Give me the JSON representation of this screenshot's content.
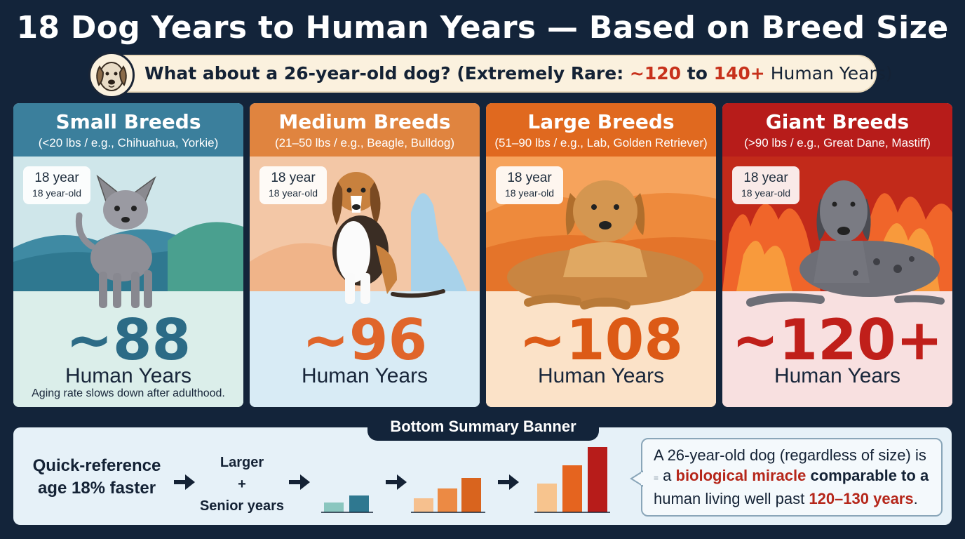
{
  "title": "18 Dog Years to Human Years — Based on Breed Size",
  "subtitle": {
    "lead": "What about a 26-year-old dog? (Extremely Rare: ",
    "low": "~120",
    "mid": " to ",
    "high": "140+",
    "tail": " Human Years)"
  },
  "cards": [
    {
      "name": "Small Breeds",
      "sub": "(<20 lbs / e.g., Chihuahua, Yorkie)",
      "badge_main": "18 year",
      "badge_sub": "18 year-old",
      "value": "~88",
      "unit": "Human Years",
      "note": "Aging rate slows down after adulthood.",
      "head_color": "#3b7f9c",
      "value_color": "#2c6b86"
    },
    {
      "name": "Medium Breeds",
      "sub": "(21–50 lbs / e.g., Beagle, Bulldog)",
      "badge_main": "18 year",
      "badge_sub": "18 year-old",
      "value": "~96",
      "unit": "Human Years",
      "head_color": "#e0843f",
      "value_color": "#e0652a"
    },
    {
      "name": "Large Breeds",
      "sub": "(51–90 lbs / e.g., Lab, Golden Retriever)",
      "badge_main": "18 year",
      "badge_sub": "18 year-old",
      "value": "~108",
      "unit": "Human Years",
      "head_color": "#e0691f",
      "value_color": "#dc5a16"
    },
    {
      "name": "Giant Breeds",
      "sub": "(>90 lbs / e.g., Great Dane, Mastiff)",
      "badge_main": "18 year",
      "badge_sub": "18 year-old",
      "value": "~120+",
      "unit": "Human Years",
      "head_color": "#b71c1a",
      "value_color": "#c01f1a"
    }
  ],
  "bottom": {
    "tab_label": "Bottom Summary Banner",
    "quick_ref": [
      "Quick-reference",
      "age 18% faster"
    ],
    "larger": [
      "Larger",
      "+",
      "Senior years"
    ],
    "callout": {
      "l1": "A 26-year-old dog (regardless of size) is",
      "dim": "≡",
      "a": "a ",
      "b": "biological miracle",
      "c": " comparable to a",
      "l3a": "human living well past ",
      "l3b": "120–130 years",
      "l3c": "."
    }
  },
  "icons": {
    "avatar": "dog-face-icon",
    "arrow": "arrow-right-icon"
  },
  "colors": {
    "background": "#13243a",
    "accent_red": "#c7311b"
  }
}
